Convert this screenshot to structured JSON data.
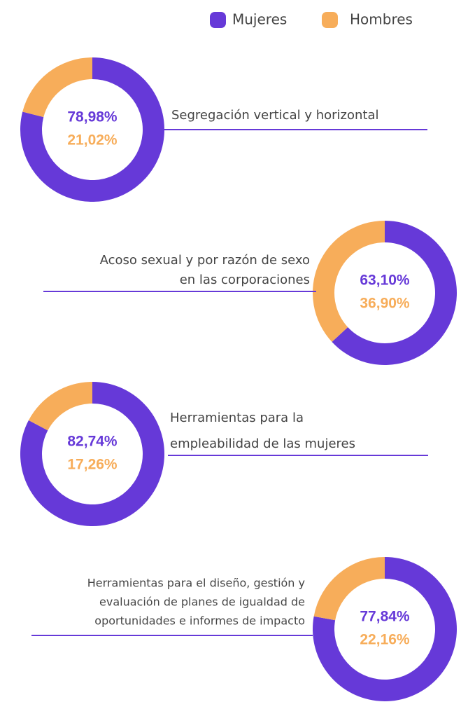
{
  "legend": {
    "labels": [
      "Mujeres",
      "Hombres"
    ],
    "colors": [
      "#6639d8",
      "#f7ad5a"
    ]
  },
  "chart_data": [
    {
      "type": "donut",
      "title": [
        "Segregación vertical y horizontal"
      ],
      "values": [
        78.98,
        21.02
      ],
      "value_labels": [
        "78,98%",
        "21,02%"
      ]
    },
    {
      "type": "donut",
      "title": [
        "Acoso sexual y por razón de sexo",
        "en las corporaciones"
      ],
      "values": [
        63.1,
        36.9
      ],
      "value_labels": [
        "63,10%",
        "36,90%"
      ]
    },
    {
      "type": "donut",
      "title": [
        "Herramientas para la",
        "empleabilidad de las mujeres"
      ],
      "values": [
        82.74,
        17.26
      ],
      "value_labels": [
        "82,74%",
        "17,26%"
      ]
    },
    {
      "type": "donut",
      "title": [
        "Herramientas para el diseño, gestión y",
        "evaluación de planes  de igualdad de",
        "oportunidades e informes de impacto"
      ],
      "values": [
        77.84,
        22.16
      ],
      "value_labels": [
        "77,84%",
        "22,16%"
      ]
    }
  ]
}
